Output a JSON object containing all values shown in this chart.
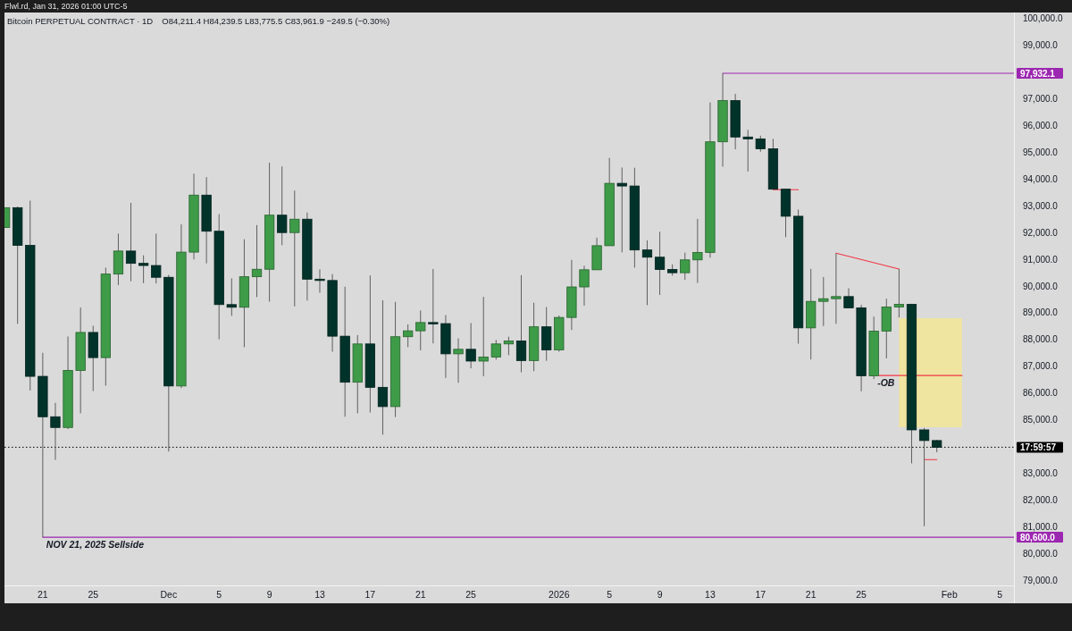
{
  "chart_data": {
    "type": "candlestick",
    "title": "Bitcoin PERPETUAL CONTRACT · 1D",
    "subtitle": "O84,211.4 H84,239.5 L83,775.5 C83,961.9 −249.5 (−0.30%)",
    "annotations": [
      "Flwl.rd, Jan 31, 2026 01:00 UTC-5",
      "17:59:57",
      {
        "text": "NOV 21, 2025 Sellside",
        "x": "2025-11-21",
        "y": 80600
      },
      {
        "text": "-OB",
        "x": "2026-01-26",
        "y": 86640
      }
    ],
    "x": [
      "2025-11-18",
      "2025-11-19",
      "2025-11-20",
      "2025-11-21",
      "2025-11-22",
      "2025-11-23",
      "2025-11-24",
      "2025-11-25",
      "2025-11-26",
      "2025-11-27",
      "2025-11-28",
      "2025-11-29",
      "2025-11-30",
      "2025-12-01",
      "2025-12-02",
      "2025-12-03",
      "2025-12-04",
      "2025-12-05",
      "2025-12-06",
      "2025-12-07",
      "2025-12-08",
      "2025-12-09",
      "2025-12-10",
      "2025-12-11",
      "2025-12-12",
      "2025-12-13",
      "2025-12-14",
      "2025-12-15",
      "2025-12-16",
      "2025-12-17",
      "2025-12-18",
      "2025-12-19",
      "2025-12-20",
      "2025-12-21",
      "2025-12-22",
      "2025-12-23",
      "2025-12-24",
      "2025-12-25",
      "2025-12-26",
      "2025-12-27",
      "2025-12-28",
      "2025-12-29",
      "2025-12-30",
      "2025-12-31",
      "2026-01-01",
      "2026-01-02",
      "2026-01-03",
      "2026-01-04",
      "2026-01-05",
      "2026-01-06",
      "2026-01-07",
      "2026-01-08",
      "2026-01-09",
      "2026-01-10",
      "2026-01-11",
      "2026-01-12",
      "2026-01-13",
      "2026-01-14",
      "2026-01-15",
      "2026-01-16",
      "2026-01-17",
      "2026-01-18",
      "2026-01-19",
      "2026-01-20",
      "2026-01-21",
      "2026-01-22",
      "2026-01-23",
      "2026-01-24",
      "2026-01-25",
      "2026-01-26",
      "2026-01-27",
      "2026-01-28",
      "2026-01-29",
      "2026-01-30",
      "2026-01-31"
    ],
    "ohlc": [
      [
        92170,
        92910,
        92170,
        92910
      ],
      [
        92910,
        92950,
        88570,
        91500
      ],
      [
        91500,
        93170,
        86080,
        86610
      ],
      [
        86610,
        87490,
        80600,
        85100
      ],
      [
        85100,
        85620,
        83490,
        84700
      ],
      [
        84700,
        88100,
        84640,
        86830
      ],
      [
        86830,
        89180,
        85230,
        88250
      ],
      [
        88250,
        88500,
        86060,
        87310
      ],
      [
        87310,
        90670,
        86260,
        90430
      ],
      [
        90430,
        91940,
        90020,
        91290
      ],
      [
        91290,
        93090,
        90160,
        90830
      ],
      [
        90830,
        91130,
        90090,
        90750
      ],
      [
        90750,
        91940,
        90080,
        90310
      ],
      [
        90310,
        90400,
        83800,
        86250
      ],
      [
        86250,
        92290,
        86170,
        91250
      ],
      [
        91250,
        94180,
        90980,
        93380
      ],
      [
        93380,
        94050,
        90830,
        92030
      ],
      [
        92030,
        92670,
        87990,
        89290
      ],
      [
        89290,
        90270,
        88870,
        89190
      ],
      [
        89190,
        91730,
        87700,
        90330
      ],
      [
        90330,
        92260,
        89570,
        90610
      ],
      [
        90610,
        94590,
        89400,
        92630
      ],
      [
        92630,
        94450,
        91510,
        91980
      ],
      [
        91980,
        93550,
        89220,
        92480
      ],
      [
        92480,
        92730,
        89440,
        90240
      ],
      [
        90240,
        90610,
        89730,
        90190
      ],
      [
        90190,
        90430,
        87530,
        88110
      ],
      [
        88110,
        89960,
        85100,
        86390
      ],
      [
        86390,
        88150,
        85230,
        87820
      ],
      [
        87820,
        90380,
        85260,
        86200
      ],
      [
        86200,
        89450,
        84430,
        85480
      ],
      [
        85480,
        89390,
        85090,
        88090
      ],
      [
        88090,
        88550,
        87700,
        88310
      ],
      [
        88310,
        89070,
        87580,
        88620
      ],
      [
        88620,
        90620,
        87840,
        88580
      ],
      [
        88580,
        88900,
        86550,
        87450
      ],
      [
        87450,
        88030,
        86370,
        87620
      ],
      [
        87620,
        88600,
        86910,
        87180
      ],
      [
        87180,
        89580,
        86610,
        87330
      ],
      [
        87330,
        87970,
        87230,
        87820
      ],
      [
        87820,
        88090,
        87400,
        87930
      ],
      [
        87930,
        90390,
        86760,
        87200
      ],
      [
        87200,
        89360,
        86800,
        88460
      ],
      [
        88460,
        89200,
        87190,
        87600
      ],
      [
        87600,
        88880,
        87530,
        88810
      ],
      [
        88810,
        90960,
        88340,
        89950
      ],
      [
        89950,
        90740,
        89250,
        90590
      ],
      [
        90590,
        91790,
        90590,
        91490
      ],
      [
        91490,
        94770,
        91490,
        93820
      ],
      [
        93820,
        94410,
        91240,
        93720
      ],
      [
        93720,
        94400,
        90670,
        91330
      ],
      [
        91330,
        91690,
        89270,
        91060
      ],
      [
        91060,
        92010,
        89650,
        90600
      ],
      [
        90600,
        90790,
        90370,
        90480
      ],
      [
        90480,
        91230,
        90210,
        90960
      ],
      [
        90960,
        92490,
        90100,
        91240
      ],
      [
        91240,
        96840,
        91040,
        95370
      ],
      [
        95370,
        97932.1,
        94440,
        96910
      ],
      [
        96910,
        97160,
        95090,
        95550
      ],
      [
        95550,
        95820,
        94260,
        95480
      ],
      [
        95480,
        95600,
        95000,
        95110
      ],
      [
        95110,
        95480,
        93600,
        93600
      ],
      [
        93600,
        93600,
        91810,
        92590
      ],
      [
        92590,
        92840,
        87830,
        88420
      ],
      [
        88420,
        90620,
        87240,
        89410
      ],
      [
        89410,
        90320,
        88490,
        89510
      ],
      [
        89510,
        91210,
        88570,
        89590
      ],
      [
        89590,
        89900,
        89170,
        89170
      ],
      [
        89170,
        89280,
        86050,
        86630
      ],
      [
        86630,
        88840,
        86510,
        88300
      ],
      [
        88300,
        89510,
        87280,
        89200
      ],
      [
        89200,
        90620,
        88810,
        89300
      ],
      [
        89300,
        89320,
        83360,
        84610
      ],
      [
        84610,
        84680,
        81010,
        84211.4
      ],
      [
        84211.4,
        84239.5,
        83775.5,
        83961.9
      ]
    ],
    "colors": [
      "#3e9b48",
      "#01332b",
      "#01332b",
      "#01332b",
      "#01332b",
      "#3e9b48",
      "#3e9b48",
      "#01332b",
      "#3e9b48",
      "#3e9b48",
      "#01332b",
      "#01332b",
      "#01332b",
      "#01332b",
      "#3e9b48",
      "#3e9b48",
      "#01332b",
      "#01332b",
      "#01332b",
      "#3e9b48",
      "#3e9b48",
      "#3e9b48",
      "#01332b",
      "#3e9b48",
      "#01332b",
      "#01332b",
      "#01332b",
      "#01332b",
      "#3e9b48",
      "#01332b",
      "#01332b",
      "#3e9b48",
      "#3e9b48",
      "#3e9b48",
      "#01332b",
      "#01332b",
      "#3e9b48",
      "#01332b",
      "#3e9b48",
      "#3e9b48",
      "#3e9b48",
      "#01332b",
      "#3e9b48",
      "#01332b",
      "#3e9b48",
      "#3e9b48",
      "#3e9b48",
      "#3e9b48",
      "#3e9b48",
      "#01332b",
      "#01332b",
      "#01332b",
      "#01332b",
      "#01332b",
      "#3e9b48",
      "#3e9b48",
      "#3e9b48",
      "#3e9b48",
      "#01332b",
      "#01332b",
      "#01332b",
      "#01332b",
      "#01332b",
      "#01332b",
      "#3e9b48",
      "#3e9b48",
      "#3e9b48",
      "#01332b",
      "#01332b",
      "#3e9b48",
      "#3e9b48",
      "#3e9b48",
      "#01332b",
      "#01332b",
      "#01332b"
    ],
    "series": [
      {
        "type": "line",
        "x": [
          "2026-01-26T10:00",
          "2026-01-28",
          "2026-02-02"
        ],
        "values": [
          86640,
          86640,
          86640
        ],
        "lower": [
          null,
          84710,
          84710
        ],
        "upper": [
          null,
          88780,
          88780
        ],
        "color": "#f23645"
      },
      {
        "type": "line",
        "x": [
          "2026-01-14",
          "2026-02-06T03:00"
        ],
        "values": [
          97932.1,
          97932.1
        ],
        "color": "#9c27b0",
        "value_labels": [
          null,
          "97,932.1"
        ]
      },
      {
        "type": "line",
        "x": [
          "2025-11-21",
          "2026-02-06T03:00"
        ],
        "values": [
          80600,
          80600
        ],
        "color": "#9c27b0",
        "value_labels": [
          null,
          "80,600.0"
        ]
      },
      {
        "type": "line",
        "x": [
          "2026-01-23",
          "2026-01-28"
        ],
        "values": [
          91210,
          90620
        ],
        "color": "#f23645"
      },
      {
        "type": "line",
        "x": [
          "2026-01-18",
          "2026-01-20"
        ],
        "values": [
          93580,
          93580
        ],
        "color": "#f23645"
      },
      {
        "type": "line",
        "x": [
          "2026-01-30",
          "2026-01-31"
        ],
        "values": [
          83500,
          83500
        ],
        "color": "#f23645"
      }
    ],
    "ref_lines": [
      {
        "axis": "y",
        "value": 83961.9,
        "color": "#000000",
        "line_style": "dotted"
      }
    ],
    "xlim": [
      "2025-11-17T23:00",
      "2026-02-06T03:00"
    ],
    "xticks": [
      {
        "value": "2025-11-21",
        "label": "21"
      },
      {
        "value": "2025-11-25",
        "label": "25"
      },
      {
        "value": "2025-12-01",
        "label": "Dec"
      },
      {
        "value": "2025-12-05",
        "label": "5"
      },
      {
        "value": "2025-12-09",
        "label": "9"
      },
      {
        "value": "2025-12-13",
        "label": "13"
      },
      {
        "value": "2025-12-17",
        "label": "17"
      },
      {
        "value": "2025-12-21",
        "label": "21"
      },
      {
        "value": "2025-12-25",
        "label": "25"
      },
      {
        "value": "2026-01-01",
        "label": "2026"
      },
      {
        "value": "2026-01-05",
        "label": "5"
      },
      {
        "value": "2026-01-09",
        "label": "9"
      },
      {
        "value": "2026-01-13",
        "label": "13"
      },
      {
        "value": "2026-01-17",
        "label": "17"
      },
      {
        "value": "2026-01-21",
        "label": "21"
      },
      {
        "value": "2026-01-25",
        "label": "25"
      },
      {
        "value": "2026-02-01",
        "label": "Feb"
      },
      {
        "value": "2026-02-05",
        "label": "5"
      }
    ],
    "ylim": [
      78800,
      100200
    ],
    "yticks": [
      {
        "value": 79000,
        "label": "79,000.0"
      },
      {
        "value": 80000,
        "label": "80,000.0"
      },
      {
        "value": 81000,
        "label": "81,000.0"
      },
      {
        "value": 82000,
        "label": "82,000.0"
      },
      {
        "value": 83000,
        "label": "83,000.0"
      },
      {
        "value": 85000,
        "label": "85,000.0"
      },
      {
        "value": 86000,
        "label": "86,000.0"
      },
      {
        "value": 87000,
        "label": "87,000.0"
      },
      {
        "value": 88000,
        "label": "88,000.0"
      },
      {
        "value": 89000,
        "label": "89,000.0"
      },
      {
        "value": 90000,
        "label": "90,000.0"
      },
      {
        "value": 91000,
        "label": "91,000.0"
      },
      {
        "value": 92000,
        "label": "92,000.0"
      },
      {
        "value": 93000,
        "label": "93,000.0"
      },
      {
        "value": 94000,
        "label": "94,000.0"
      },
      {
        "value": 95000,
        "label": "95,000.0"
      },
      {
        "value": 96000,
        "label": "96,000.0"
      },
      {
        "value": 97000,
        "label": "97,000.0"
      },
      {
        "value": 99000,
        "label": "99,000.0"
      },
      {
        "value": 100000,
        "label": "100,000.0"
      }
    ]
  }
}
